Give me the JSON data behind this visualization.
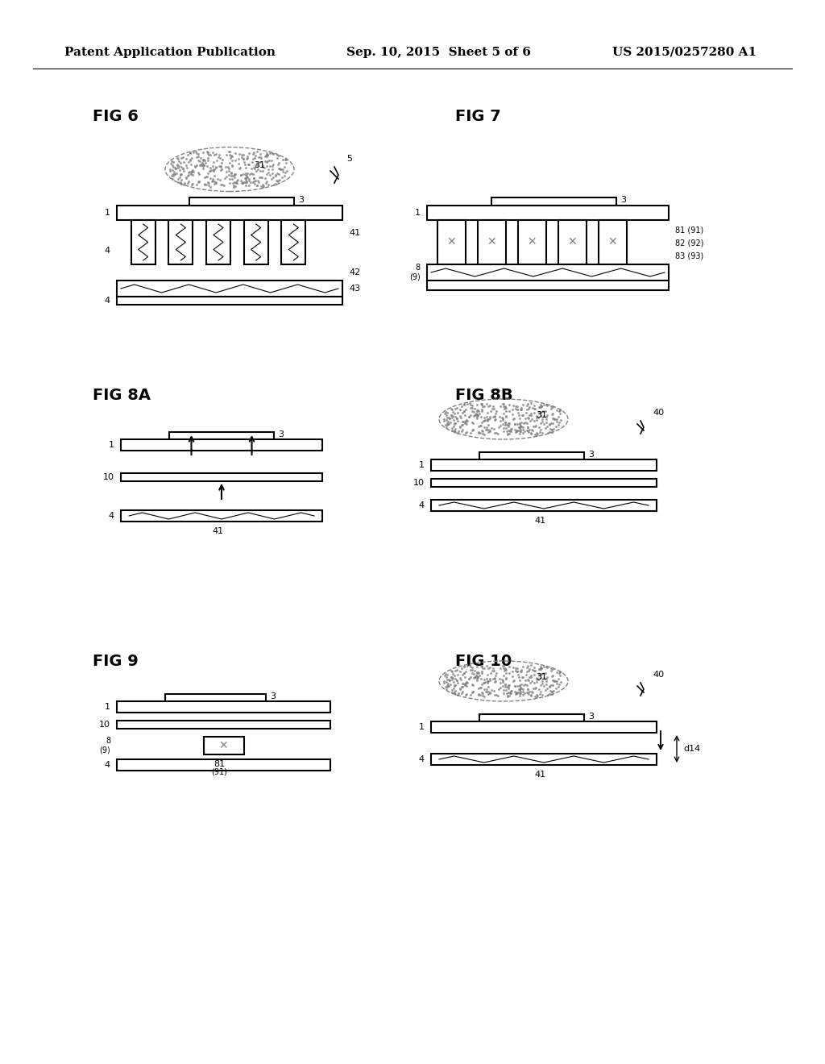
{
  "title_left": "Patent Application Publication",
  "title_center": "Sep. 10, 2015  Sheet 5 of 6",
  "title_right": "US 2015/0257280 A1",
  "background_color": "#ffffff",
  "text_color": "#000000",
  "fig_labels": [
    "FIG 6",
    "FIG 7",
    "FIG 8A",
    "FIG 8B",
    "FIG 9",
    "FIG 10"
  ]
}
